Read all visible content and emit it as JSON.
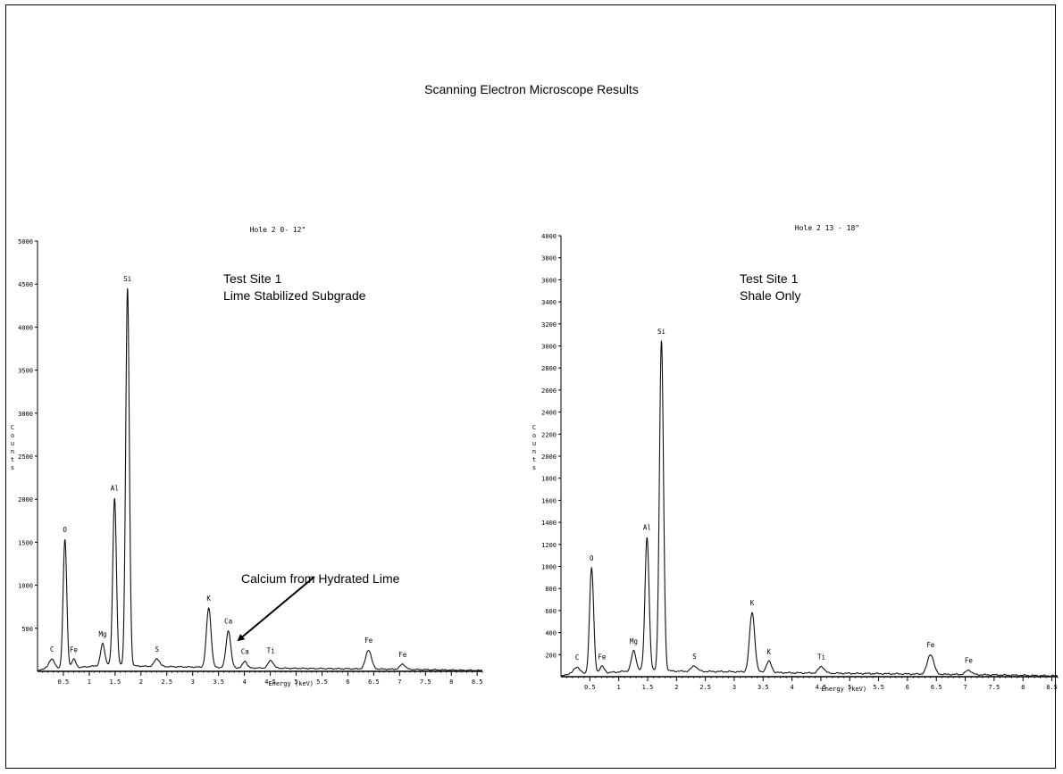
{
  "page": {
    "title": "Scanning Electron Microscope Results"
  },
  "annotation": {
    "text": "Calcium from Hydrated Lime"
  },
  "chart_data": [
    {
      "type": "line",
      "title": "Hole 2 0- 12\"",
      "caption": [
        "Test Site 1",
        "Lime Stabilized Subgrade"
      ],
      "xlabel": "Energy (keV)",
      "ylabel": "Counts",
      "xlim": [
        0,
        8.6
      ],
      "ylim": [
        0,
        5000
      ],
      "xticks": [
        0.5,
        1,
        1.5,
        2,
        2.5,
        3,
        3.5,
        4,
        4.5,
        5,
        5.5,
        6,
        6.5,
        7,
        7.5,
        8,
        8.5
      ],
      "xtick_labels": [
        "0.5",
        "1",
        "1.5",
        "2",
        "2.5",
        "3",
        "3.5",
        "4",
        "4.5",
        "5",
        "5.5",
        "6",
        "6.5",
        "7",
        "7.5",
        "8",
        "8.5"
      ],
      "yticks": [
        500,
        1000,
        1500,
        2000,
        2500,
        3000,
        3500,
        4000,
        4500,
        5000
      ],
      "ytick_labels": [
        "500",
        "1000",
        "1500",
        "2000",
        "2500",
        "3000",
        "3500",
        "4000",
        "4500",
        "5000"
      ],
      "baseline": [
        [
          0,
          0
        ],
        [
          0.15,
          40
        ],
        [
          0.45,
          30
        ],
        [
          0.9,
          50
        ],
        [
          1.4,
          80
        ],
        [
          2,
          60
        ],
        [
          3,
          50
        ],
        [
          4,
          40
        ],
        [
          5,
          35
        ],
        [
          6,
          30
        ],
        [
          7,
          25
        ],
        [
          8,
          15
        ],
        [
          8.6,
          10
        ]
      ],
      "peaks": [
        {
          "label": "C",
          "x": 0.28,
          "y": 110,
          "w": 0.05
        },
        {
          "label": "O",
          "x": 0.53,
          "y": 1500,
          "w": 0.035
        },
        {
          "label": "Fe",
          "x": 0.7,
          "y": 100,
          "w": 0.04
        },
        {
          "label": "Mg",
          "x": 1.26,
          "y": 250,
          "w": 0.04
        },
        {
          "label": "Al",
          "x": 1.49,
          "y": 1940,
          "w": 0.035
        },
        {
          "label": "Si",
          "x": 1.74,
          "y": 4380,
          "w": 0.035
        },
        {
          "label": "S",
          "x": 2.31,
          "y": 90,
          "w": 0.05
        },
        {
          "label": "K",
          "x": 3.31,
          "y": 690,
          "w": 0.045
        },
        {
          "label": "Ca",
          "x": 3.69,
          "y": 430,
          "w": 0.045
        },
        {
          "label": "Ca",
          "x": 4.01,
          "y": 80,
          "w": 0.04
        },
        {
          "label": "Ti",
          "x": 4.51,
          "y": 90,
          "w": 0.05
        },
        {
          "label": "Fe",
          "x": 6.4,
          "y": 220,
          "w": 0.055
        },
        {
          "label": "Fe",
          "x": 7.06,
          "y": 60,
          "w": 0.05
        }
      ]
    },
    {
      "type": "line",
      "title": "Hole 2 13 - 18\"",
      "caption": [
        "Test Site 1",
        "Shale Only"
      ],
      "xlabel": "Energy (keV)",
      "ylabel": "Counts",
      "xlim": [
        0,
        8.6
      ],
      "ylim": [
        0,
        4000
      ],
      "xticks": [
        0.5,
        1,
        1.5,
        2,
        2.5,
        3,
        3.5,
        4,
        4.5,
        5,
        5.5,
        6,
        6.5,
        7,
        7.5,
        8,
        8.5
      ],
      "xtick_labels": [
        "0.5",
        "1",
        "1.5",
        "2",
        "2.5",
        "3",
        "3.5",
        "4",
        "4.5",
        "5",
        "5.5",
        "6",
        "6.5",
        "7",
        "7.5",
        "8",
        "8.5"
      ],
      "yticks": [
        200,
        400,
        600,
        800,
        1000,
        1200,
        1400,
        1600,
        1800,
        2000,
        2200,
        2400,
        2600,
        2800,
        3000,
        3200,
        3400,
        3600,
        3800,
        4000
      ],
      "ytick_labels": [
        "200",
        "400",
        "600",
        "800",
        "1000",
        "1200",
        "1400",
        "1600",
        "1800",
        "2000",
        "2200",
        "2400",
        "2600",
        "2800",
        "3000",
        "3200",
        "3400",
        "3600",
        "3800",
        "4000"
      ],
      "baseline": [
        [
          0,
          0
        ],
        [
          0.15,
          30
        ],
        [
          0.45,
          25
        ],
        [
          0.9,
          40
        ],
        [
          1.4,
          60
        ],
        [
          2,
          50
        ],
        [
          3,
          45
        ],
        [
          4,
          35
        ],
        [
          5,
          30
        ],
        [
          6,
          25
        ],
        [
          7,
          20
        ],
        [
          8,
          12
        ],
        [
          8.6,
          8
        ]
      ],
      "peaks": [
        {
          "label": "C",
          "x": 0.28,
          "y": 60,
          "w": 0.05
        },
        {
          "label": "O",
          "x": 0.53,
          "y": 960,
          "w": 0.035
        },
        {
          "label": "Fe",
          "x": 0.71,
          "y": 60,
          "w": 0.04
        },
        {
          "label": "Mg",
          "x": 1.26,
          "y": 180,
          "w": 0.04
        },
        {
          "label": "Al",
          "x": 1.49,
          "y": 1210,
          "w": 0.035
        },
        {
          "label": "Si",
          "x": 1.74,
          "y": 2990,
          "w": 0.035
        },
        {
          "label": "S",
          "x": 2.31,
          "y": 50,
          "w": 0.05
        },
        {
          "label": "K",
          "x": 3.31,
          "y": 540,
          "w": 0.045
        },
        {
          "label": "K",
          "x": 3.6,
          "y": 100,
          "w": 0.045
        },
        {
          "label": "Ti",
          "x": 4.51,
          "y": 60,
          "w": 0.05
        },
        {
          "label": "Fe",
          "x": 6.4,
          "y": 180,
          "w": 0.055
        },
        {
          "label": "Fe",
          "x": 7.06,
          "y": 40,
          "w": 0.05
        }
      ]
    }
  ]
}
